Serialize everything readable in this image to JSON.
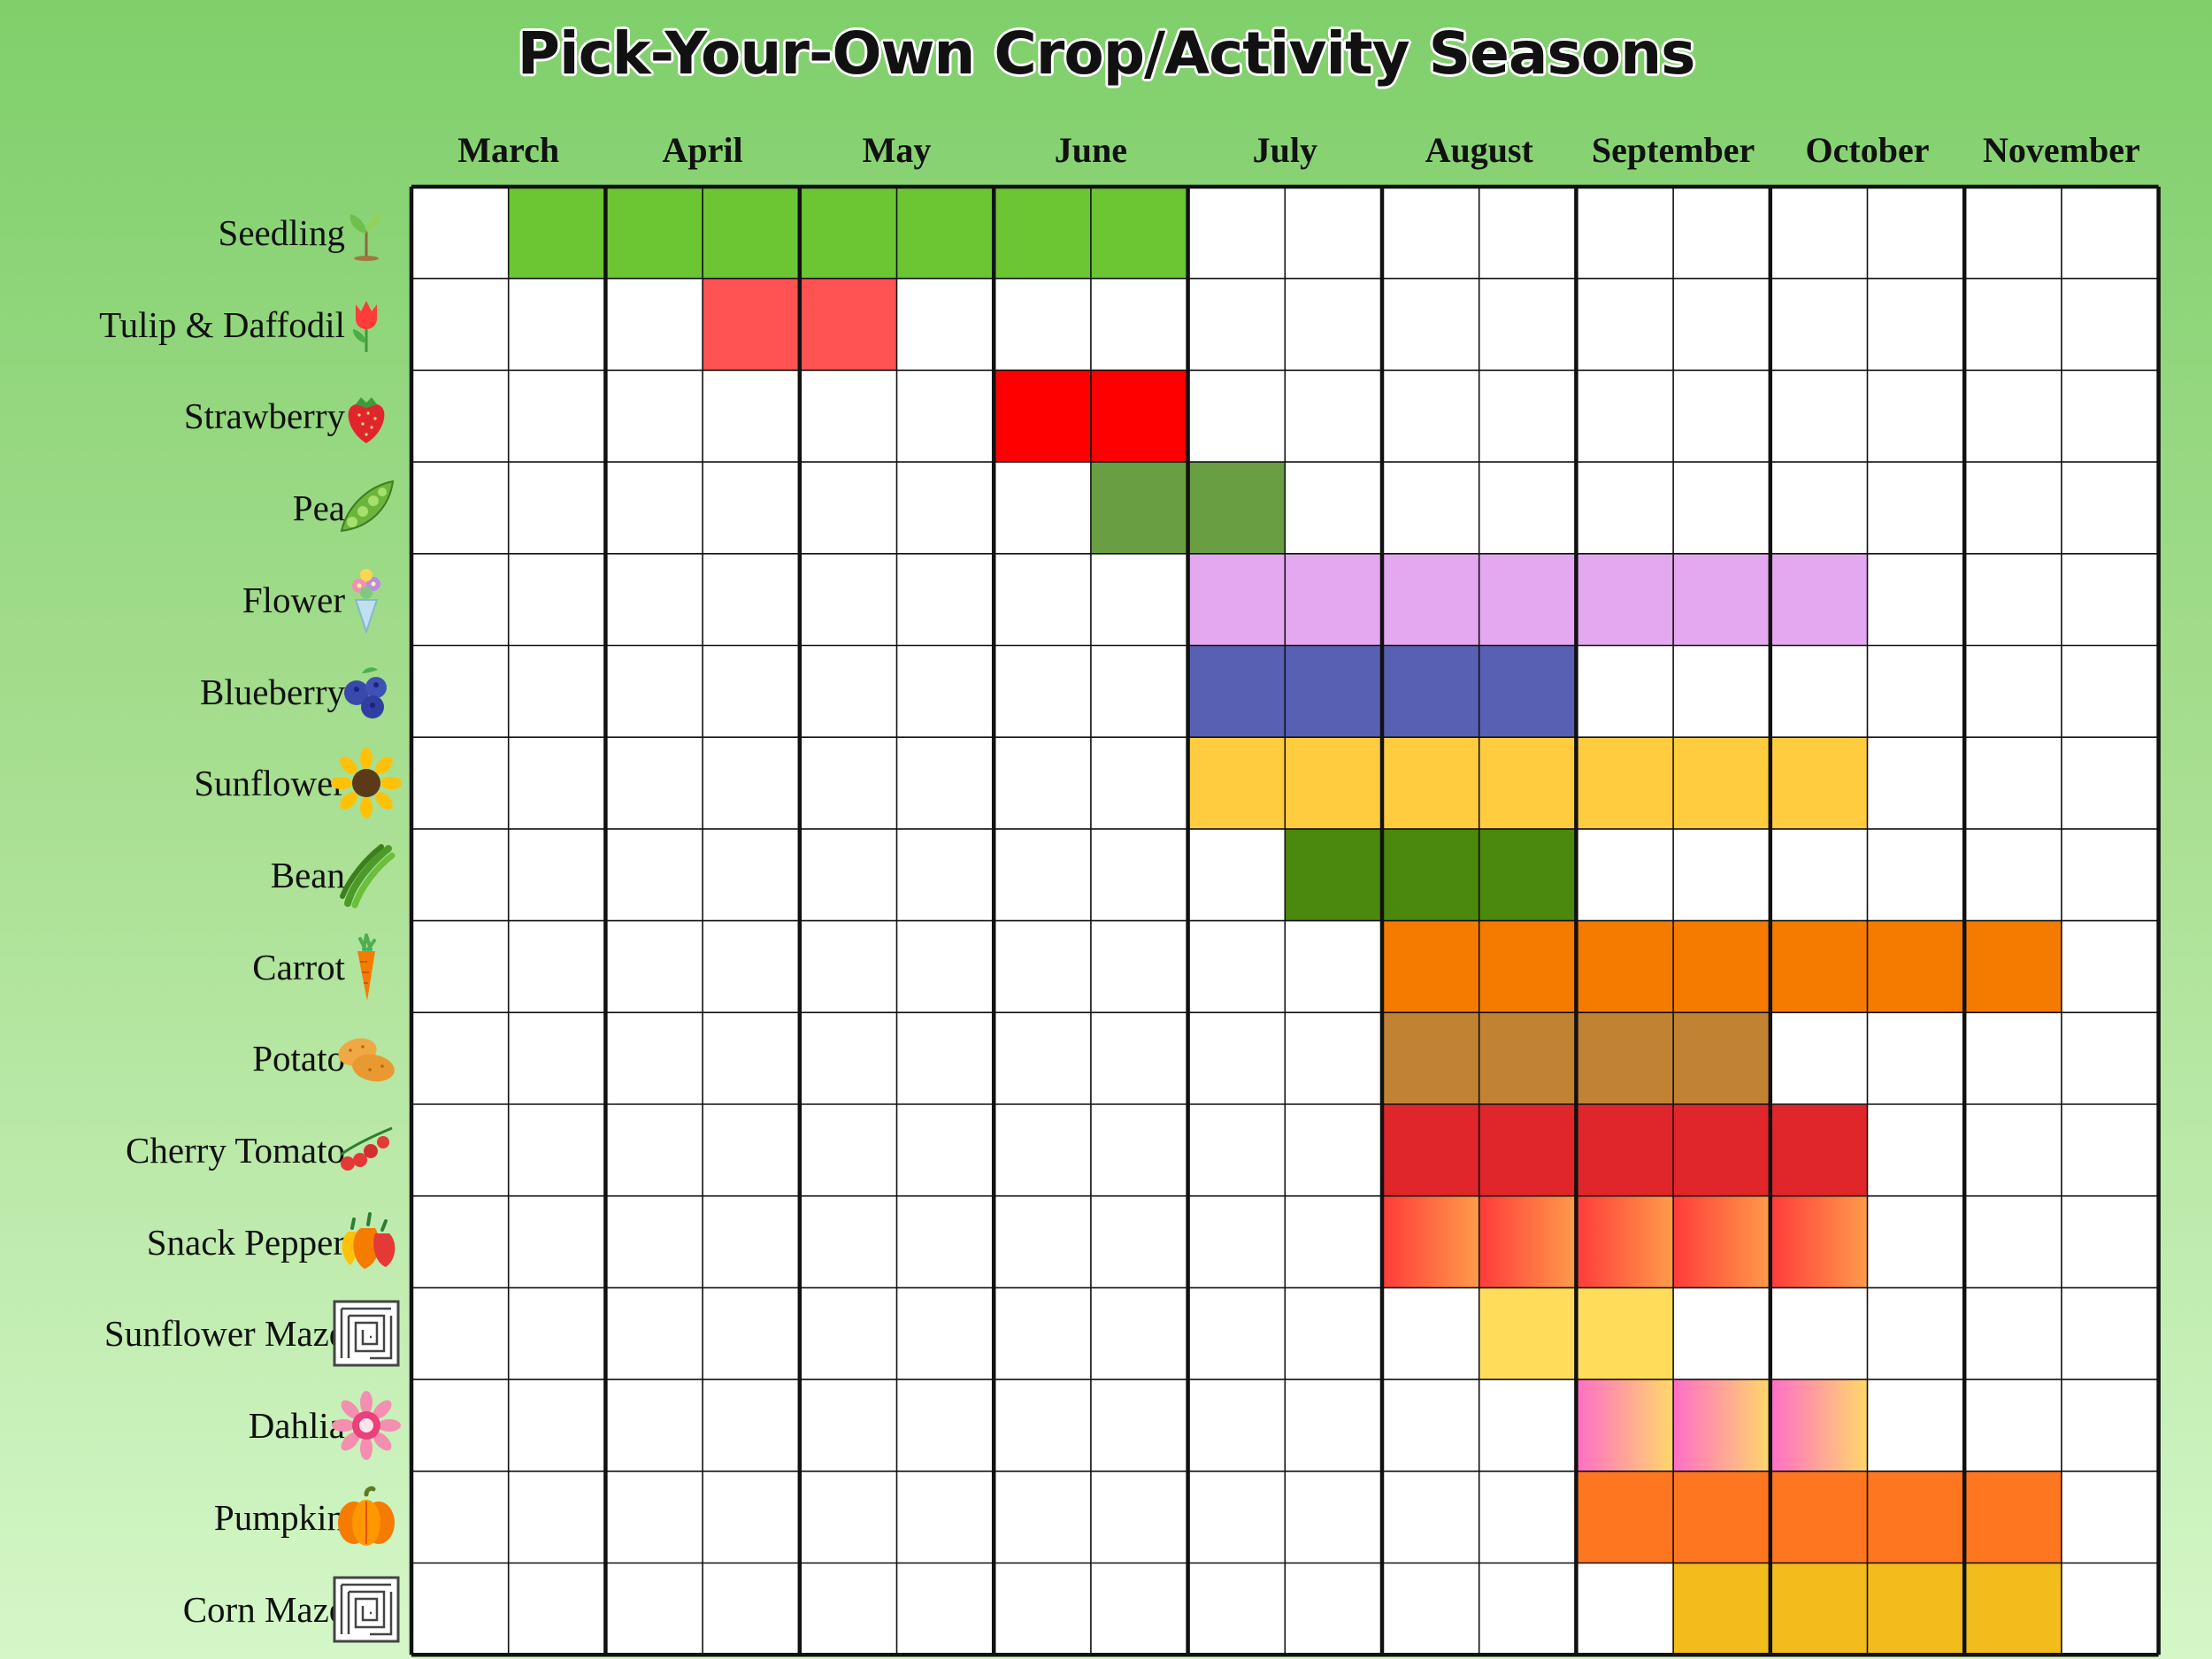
{
  "chart_data": {
    "type": "table",
    "title": "Pick-Your-Own Crop/Activity Seasons",
    "months": [
      "March",
      "April",
      "May",
      "June",
      "July",
      "August",
      "September",
      "October",
      "November"
    ],
    "half_month_columns": 18,
    "rows": [
      {
        "label": "Seedling",
        "icon": "seedling-icon",
        "color": "#6cc533",
        "cells": [
          1,
          2,
          3,
          4,
          5,
          6,
          7
        ]
      },
      {
        "label": "Tulip & Daffodil",
        "icon": "tulip-icon",
        "color": "#ff5252",
        "cells": [
          3,
          4
        ]
      },
      {
        "label": "Strawberry",
        "icon": "strawberry-icon",
        "color": "#ff0000",
        "cells": [
          6,
          7
        ]
      },
      {
        "label": "Pea",
        "icon": "pea-pod-icon",
        "color": "#6a9e42",
        "cells": [
          7,
          8
        ]
      },
      {
        "label": "Flower",
        "icon": "flower-bouquet-icon",
        "color": "#e3a8ef",
        "cells": [
          8,
          9,
          10,
          11,
          12,
          13,
          14
        ]
      },
      {
        "label": "Blueberry",
        "icon": "blueberry-icon",
        "color": "#5860b4",
        "cells": [
          8,
          9,
          10,
          11
        ]
      },
      {
        "label": "Sunflower",
        "icon": "sunflower-icon",
        "color": "#ffcc40",
        "cells": [
          8,
          9,
          10,
          11,
          12,
          13,
          14
        ]
      },
      {
        "label": "Bean",
        "icon": "green-bean-icon",
        "color": "#4a880e",
        "cells": [
          9,
          10,
          11
        ]
      },
      {
        "label": "Carrot",
        "icon": "carrot-icon",
        "color": "#f47b00",
        "cells": [
          10,
          11,
          12,
          13,
          14,
          15,
          16
        ]
      },
      {
        "label": "Potato",
        "icon": "potato-icon",
        "color": "#c18233",
        "cells": [
          10,
          11,
          12,
          13
        ]
      },
      {
        "label": "Cherry Tomato",
        "icon": "cherry-tomato-icon",
        "color": "#e0252b",
        "cells": [
          10,
          11,
          12,
          13,
          14
        ]
      },
      {
        "label": "Snack Pepper",
        "icon": "pepper-icon",
        "color": "#ff3b3b",
        "color2": "#ff9b4a",
        "cells": [
          10,
          11,
          12,
          13,
          14
        ]
      },
      {
        "label": "Sunflower Maze",
        "icon": "maze-icon",
        "color": "#ffdd5a",
        "cells": [
          11,
          12
        ]
      },
      {
        "label": "Dahlia",
        "icon": "dahlia-icon",
        "color": "#ff6ec7",
        "color2": "#ffd86a",
        "cells": [
          12,
          13,
          14
        ]
      },
      {
        "label": "Pumpkin",
        "icon": "pumpkin-icon",
        "color": "#ff7621",
        "cells": [
          12,
          13,
          14,
          15,
          16
        ]
      },
      {
        "label": "Corn Maze",
        "icon": "maze-icon",
        "color": "#f2bc1c",
        "cells": [
          13,
          14,
          15,
          16
        ]
      }
    ]
  }
}
